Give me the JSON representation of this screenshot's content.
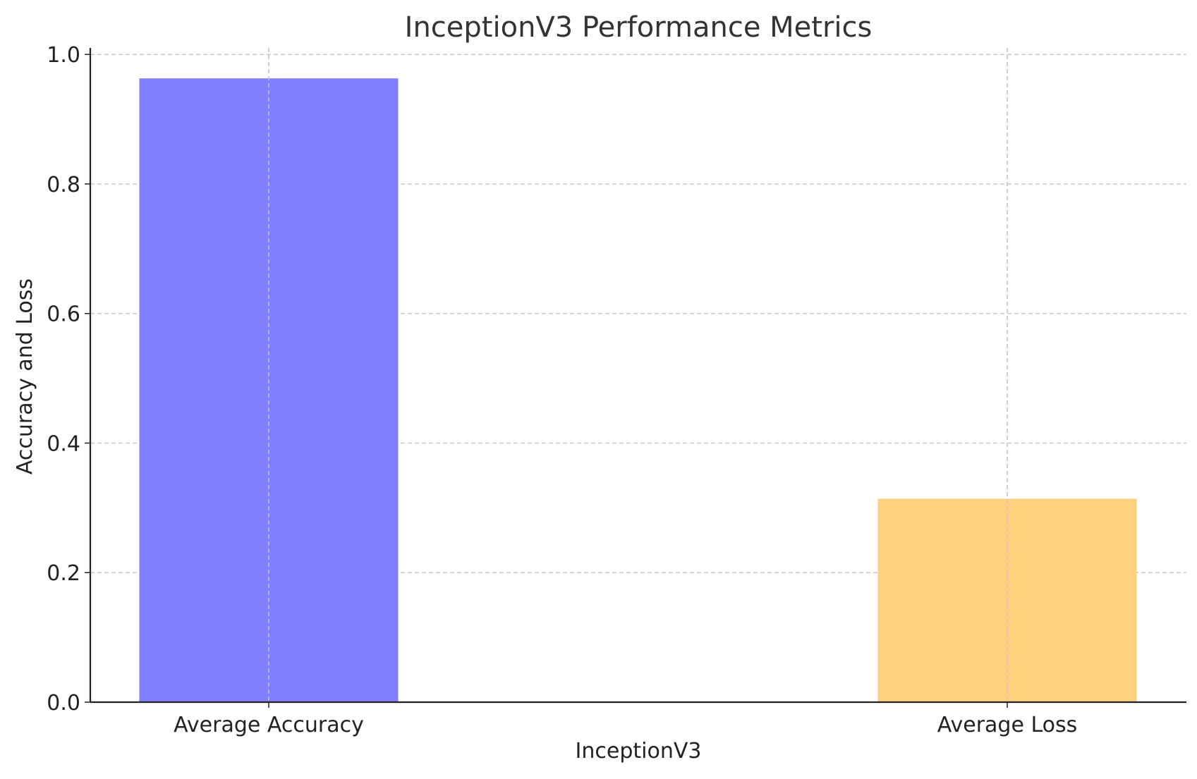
{
  "chart_data": {
    "type": "bar",
    "title": "InceptionV3 Performance Metrics",
    "xlabel": "InceptionV3",
    "ylabel": "Accuracy and Loss",
    "categories": [
      "Average Accuracy",
      "Average Loss"
    ],
    "values": [
      0.963,
      0.314
    ],
    "colors": [
      "#7f7fff",
      "#ffd17f"
    ],
    "ylim": [
      0,
      1.01
    ],
    "yticks": [
      0.0,
      0.2,
      0.4,
      0.6,
      0.8,
      1.0
    ],
    "ytick_labels": [
      "0.0",
      "0.2",
      "0.4",
      "0.6",
      "0.8",
      "1.0"
    ],
    "grid": true,
    "grid_style": "dashed",
    "legend": "none"
  }
}
